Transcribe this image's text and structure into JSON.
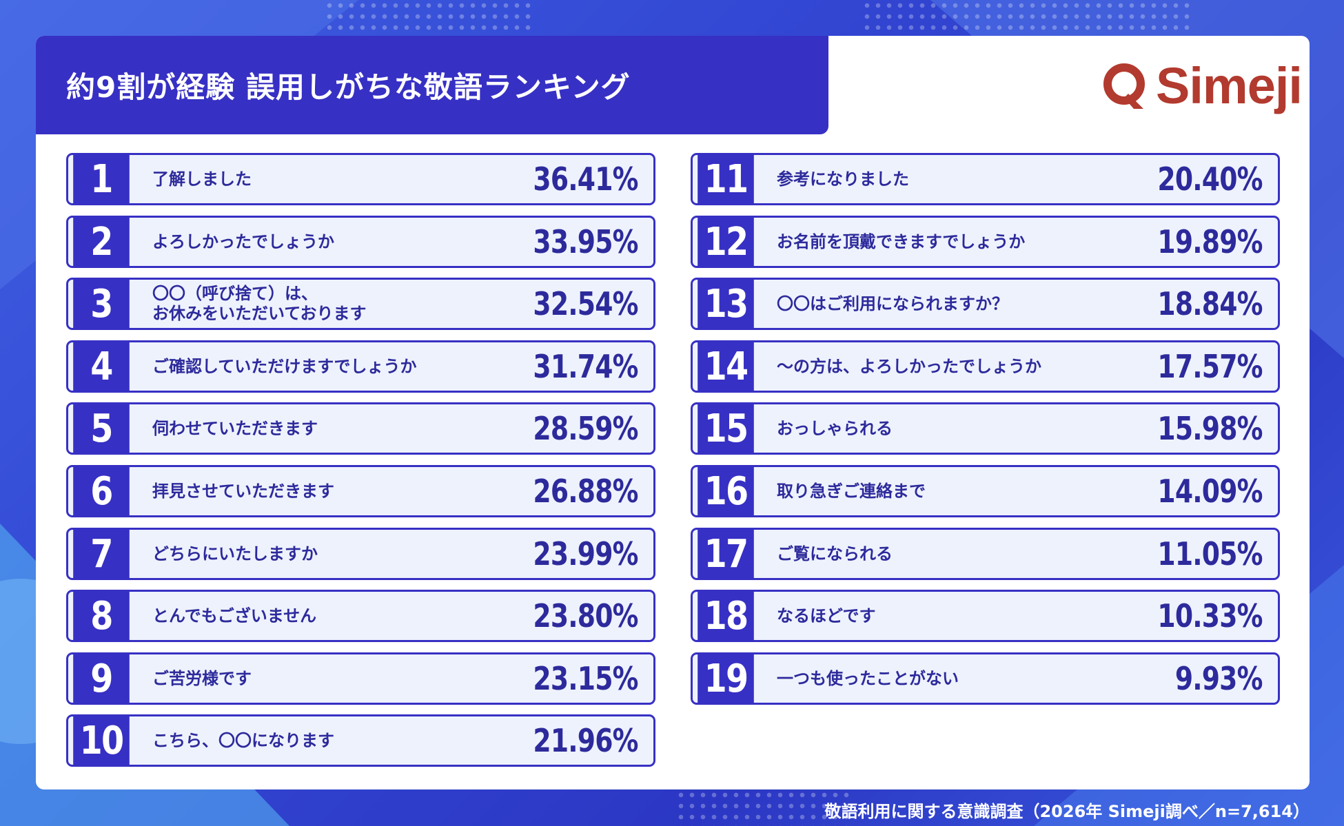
{
  "title": "約9割が経験 誤用しがちな敬語ランキング",
  "brand": {
    "name": "Simeji",
    "color": "#b23a2e",
    "icon": "speech-bubble-q-icon"
  },
  "footer": "敬語利用に関する意識調査（2026年 Simeji調べ／n=7,614）",
  "colors": {
    "primary": "#3730c4",
    "row_bg": "#eef2fc",
    "text": "#2d2a9c"
  },
  "chart_data": {
    "type": "table",
    "title": "約9割が経験 誤用しがちな敬語ランキング",
    "ranks": [
      "1",
      "2",
      "3",
      "4",
      "5",
      "6",
      "7",
      "8",
      "9",
      "10",
      "11",
      "12",
      "13",
      "14",
      "15",
      "16",
      "17",
      "18",
      "19"
    ],
    "categories": [
      "了解しました",
      "よろしかったでしょうか",
      "〇〇（呼び捨て）は、\nお休みをいただいております",
      "ご確認していただけますでしょうか",
      "伺わせていただきます",
      "拝見させていただきます",
      "どちらにいたしますか",
      "とんでもございません",
      "ご苦労様です",
      "こちら、〇〇になります",
      "参考になりました",
      "お名前を頂戴できますでしょうか",
      "〇〇はご利用になられますか？",
      "〜の方は、よろしかったでしょうか",
      "おっしゃられる",
      "取り急ぎご連絡まで",
      "ご覧になられる",
      "なるほどです",
      "一つも使ったことがない"
    ],
    "value_labels": [
      "36.41%",
      "33.95%",
      "32.54%",
      "31.74%",
      "28.59%",
      "26.88%",
      "23.99%",
      "23.80%",
      "23.15%",
      "21.96%",
      "20.40%",
      "19.89%",
      "18.84%",
      "17.57%",
      "15.98%",
      "14.09%",
      "11.05%",
      "10.33%",
      "9.93%"
    ],
    "values": [
      36.41,
      33.95,
      32.54,
      31.74,
      28.59,
      26.88,
      23.99,
      23.8,
      23.15,
      21.96,
      20.4,
      19.89,
      18.84,
      17.57,
      15.98,
      14.09,
      11.05,
      10.33,
      9.93
    ]
  }
}
